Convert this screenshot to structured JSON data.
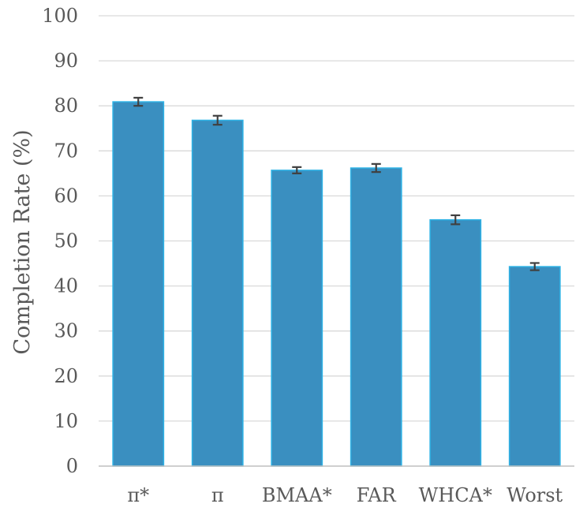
{
  "chart_data": {
    "type": "bar",
    "title": "",
    "xlabel": "",
    "ylabel": "Completion Rate (%)",
    "ylim": [
      0,
      100
    ],
    "yticks": [
      0,
      10,
      20,
      30,
      40,
      50,
      60,
      70,
      80,
      90,
      100
    ],
    "grid": true,
    "legend": "none",
    "categories": [
      "π*",
      "π",
      "BMAA*",
      "FAR",
      "WHCA*",
      "Worst"
    ],
    "values": [
      80.9,
      76.8,
      65.7,
      66.2,
      54.7,
      44.3
    ],
    "error": [
      0.9,
      1.0,
      0.7,
      0.9,
      1.0,
      0.8
    ],
    "colors": {
      "bar_fill": "#3a8fc0",
      "bar_edge": "#2fb3e6",
      "gridline": "#d9d9d9",
      "axis_line": "#bfbfbf",
      "error_bar": "#404040",
      "text": "#595959"
    }
  }
}
